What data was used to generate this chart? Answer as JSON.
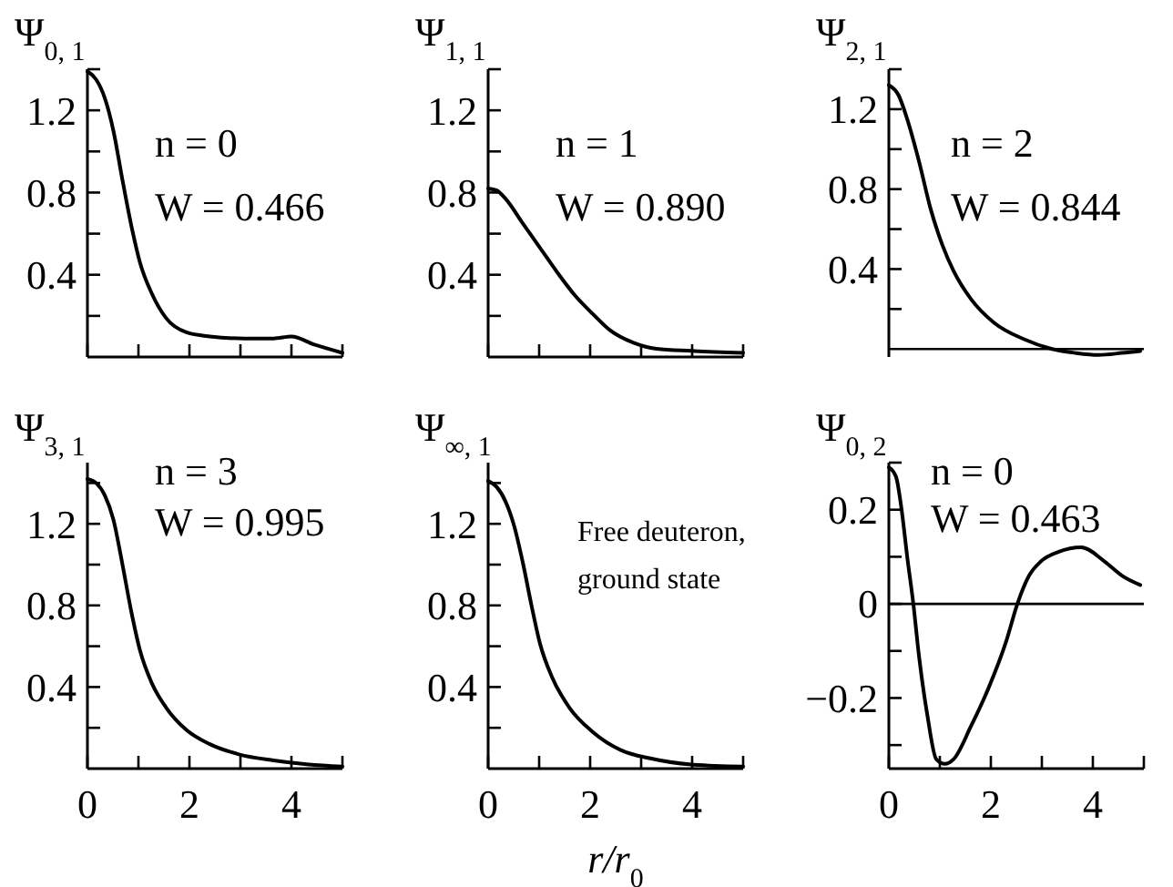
{
  "chart_data": [
    {
      "type": "line",
      "title": "Ψ$_{0, 1}$",
      "x": [
        0,
        0.17,
        0.34,
        0.51,
        0.68,
        0.86,
        1.03,
        1.26,
        1.54,
        1.94,
        2.4,
        3.08,
        3.65,
        4.0,
        4.45,
        5.0
      ],
      "values": [
        1.39,
        1.35,
        1.26,
        1.1,
        0.87,
        0.64,
        0.46,
        0.31,
        0.19,
        0.12,
        0.1,
        0.09,
        0.09,
        0.1,
        0.06,
        0.02
      ],
      "color": "#000000",
      "xlim": [
        0,
        5
      ],
      "ylim": [
        0,
        1.4
      ],
      "xticks": [
        0,
        {
          "value": 1,
          "label": null
        },
        2,
        {
          "value": 3,
          "label": null
        },
        4,
        {
          "value": 5,
          "label": null
        }
      ],
      "yticks": [
        {
          "value": 0.2,
          "label": null
        },
        0.4,
        {
          "value": 0.6,
          "label": null
        },
        0.8,
        {
          "value": 1.0,
          "label": null
        },
        1.2,
        {
          "value": 1.4,
          "label": null
        }
      ],
      "tick_labels": "y",
      "annotations": [
        "n = 0",
        "W = 0.466"
      ]
    },
    {
      "type": "line",
      "title": "Ψ$_{1, 1}$",
      "x": [
        0,
        0.17,
        0.34,
        0.68,
        1.02,
        1.36,
        1.7,
        2.05,
        2.39,
        2.84,
        3.3,
        3.98,
        5.0
      ],
      "values": [
        0.82,
        0.81,
        0.77,
        0.65,
        0.53,
        0.41,
        0.3,
        0.21,
        0.13,
        0.07,
        0.04,
        0.03,
        0.02
      ],
      "color": "#000000",
      "xlim": [
        0,
        5
      ],
      "ylim": [
        0,
        1.4
      ],
      "xticks": [
        0,
        {
          "value": 1,
          "label": null
        },
        2,
        {
          "value": 3,
          "label": null
        },
        4,
        {
          "value": 5,
          "label": null
        }
      ],
      "yticks": [
        {
          "value": 0.2,
          "label": null
        },
        0.4,
        {
          "value": 0.6,
          "label": null
        },
        0.8,
        {
          "value": 1.0,
          "label": null
        },
        1.2,
        {
          "value": 1.4,
          "label": null
        }
      ],
      "tick_labels": "y",
      "annotations": [
        "n = 1",
        "W = 0.890"
      ]
    },
    {
      "type": "line",
      "title": "Ψ$_{2, 1}$",
      "x": [
        0,
        0.19,
        0.36,
        0.59,
        0.82,
        1.05,
        1.27,
        1.61,
        2.07,
        2.64,
        3.2,
        3.66,
        4.11,
        4.57,
        4.93
      ],
      "values": [
        1.32,
        1.27,
        1.15,
        0.94,
        0.7,
        0.52,
        0.39,
        0.25,
        0.13,
        0.05,
        0,
        -0.02,
        -0.03,
        -0.02,
        -0.01
      ],
      "color": "#000000",
      "xlim": [
        0,
        5
      ],
      "ylim": [
        -0.04,
        1.4
      ],
      "yticks": [
        {
          "value": 0.2,
          "label": null
        },
        0.4,
        {
          "value": 0.6,
          "label": null
        },
        0.8,
        {
          "value": 1.0,
          "label": null
        },
        1.2,
        {
          "value": 1.4,
          "label": null
        }
      ],
      "tick_labels": "y",
      "ref_lines": [
        {
          "axis": "y",
          "value": 0
        }
      ],
      "annotations": [
        "n = 2",
        "W = 0.844"
      ]
    },
    {
      "type": "line",
      "title": "Ψ$_{3, 1}$",
      "x": [
        0,
        0.17,
        0.34,
        0.51,
        0.68,
        0.86,
        1.03,
        1.26,
        1.54,
        1.94,
        2.4,
        2.97,
        3.65,
        4.34,
        5.0
      ],
      "values": [
        1.42,
        1.4,
        1.34,
        1.22,
        1.01,
        0.77,
        0.58,
        0.42,
        0.3,
        0.19,
        0.12,
        0.07,
        0.04,
        0.02,
        0.01
      ],
      "color": "#000000",
      "xlim": [
        0,
        5
      ],
      "ylim": [
        0,
        1.5
      ],
      "xticks": [
        0,
        {
          "value": 1,
          "label": null
        },
        2,
        {
          "value": 3,
          "label": null
        },
        4,
        {
          "value": 5,
          "label": null
        }
      ],
      "yticks": [
        {
          "value": 0.2,
          "label": null
        },
        0.4,
        {
          "value": 0.6,
          "label": null
        },
        0.8,
        {
          "value": 1.0,
          "label": null
        },
        1.2,
        {
          "value": 1.4,
          "label": null
        }
      ],
      "annotations": [
        "n = 3",
        "W = 0.995"
      ]
    },
    {
      "type": "line",
      "title": "Ψ$_{∞, 1}$",
      "xlabel": "r/r$_{0}$",
      "x": [
        0,
        0.17,
        0.34,
        0.51,
        0.68,
        0.85,
        1.02,
        1.25,
        1.59,
        2.05,
        2.61,
        3.18,
        3.98,
        5.0
      ],
      "values": [
        1.41,
        1.38,
        1.31,
        1.19,
        1.01,
        0.8,
        0.61,
        0.45,
        0.3,
        0.18,
        0.09,
        0.05,
        0.02,
        0.01
      ],
      "color": "#000000",
      "xlim": [
        0,
        5
      ],
      "ylim": [
        0,
        1.5
      ],
      "xticks": [
        0,
        {
          "value": 1,
          "label": null
        },
        2,
        {
          "value": 3,
          "label": null
        },
        4,
        {
          "value": 5,
          "label": null
        }
      ],
      "yticks": [
        {
          "value": 0.2,
          "label": null
        },
        0.4,
        {
          "value": 0.6,
          "label": null
        },
        0.8,
        {
          "value": 1.0,
          "label": null
        },
        1.2,
        {
          "value": 1.4,
          "label": null
        }
      ],
      "annotations": [
        "Free deuteron,",
        "ground state"
      ]
    },
    {
      "type": "line",
      "title": "Ψ$_{0, 2}$",
      "x": [
        0,
        0.14,
        0.25,
        0.36,
        0.48,
        0.59,
        0.76,
        0.93,
        1.1,
        1.27,
        1.61,
        1.95,
        2.3,
        2.52,
        2.75,
        2.98,
        3.32,
        3.77,
        4.23,
        4.57,
        4.93
      ],
      "values": [
        0.29,
        0.27,
        0.2,
        0.1,
        0,
        -0.11,
        -0.24,
        -0.33,
        -0.34,
        -0.33,
        -0.26,
        -0.18,
        -0.08,
        0,
        0.06,
        0.09,
        0.11,
        0.12,
        0.09,
        0.06,
        0.04
      ],
      "color": "#000000",
      "xlim": [
        0,
        5
      ],
      "ylim": [
        -0.35,
        0.3
      ],
      "xticks": [
        0,
        {
          "value": 1,
          "label": null
        },
        2,
        {
          "value": 3,
          "label": null
        },
        4,
        {
          "value": 5,
          "label": null
        }
      ],
      "yticks": [
        {
          "value": -0.3,
          "label": null
        },
        {
          "value": -0.2,
          "label": "−0.2"
        },
        {
          "value": -0.1,
          "label": null
        },
        0,
        {
          "value": 0.1,
          "label": null
        },
        0.2,
        {
          "value": 0.3,
          "label": null
        }
      ],
      "ref_lines": [
        {
          "axis": "y",
          "value": 0
        }
      ],
      "annotations": [
        "n = 0",
        "W = 0.463"
      ]
    }
  ]
}
